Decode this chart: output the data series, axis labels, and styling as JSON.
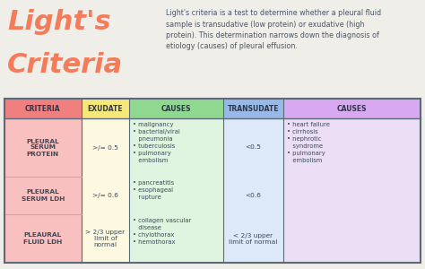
{
  "bg_color": "#f0eee9",
  "title_line1": "Light's",
  "title_line2": "Criteria",
  "title_color": "#f47c5a",
  "description": "Light's criteria is a test to determine whether a pleural fluid\nsample is transudative (low protein) or exudative (high\nprotein). This determination narrows down the diagnosis of\netiology (causes) of pleural effusion.",
  "desc_color": "#4a5568",
  "table_border_color": "#5a6a7a",
  "header_row": [
    "CRITERIA",
    "EXUDATE",
    "CAUSES",
    "TRANSUDATE",
    "CAUSES"
  ],
  "header_colors": [
    "#f08080",
    "#f5e87a",
    "#90d890",
    "#98b8e8",
    "#d8a8f0"
  ],
  "header_text_color": "#2d3748",
  "row_criteria_color": "#f9c0c0",
  "row_exudate_color": "#fdf8e0",
  "row_causes_color": "#e0f5e0",
  "row_transudate_color": "#dde8f8",
  "row_causes2_color": "#ecdff5",
  "divider_color": "#d4a0a0",
  "criteria_labels": [
    "PLEURAL\nSERUM\nPROTEIN",
    "PLEURAL\nSERUM LDH",
    "PLEAURAL\nFLUID LDH"
  ],
  "exudate_values": [
    ">/= 0.5",
    ">/= 0.6",
    "> 2/3 upper\nlimit of\nnormal"
  ],
  "transudate_values": [
    "<0.5",
    "<0.6",
    "< 2/3 upper\nlimit of normal"
  ],
  "exudate_causes_row0": "• malignancy\n• bacterial/viral\n   pneumonia\n• tuberculosis\n• pulmonary\n   embolism",
  "exudate_causes_row1": "• pancreatitis\n• esophageal\n   rupture",
  "exudate_causes_row2": "• collagen vascular\n   disease\n• chylothorax\n• hemothorax",
  "transudate_causes_row0": "• heart failure\n• cirrhosis\n• nephrotic\n   syndrome\n• pulmonary\n   embolism",
  "text_color": "#3a4a5a"
}
